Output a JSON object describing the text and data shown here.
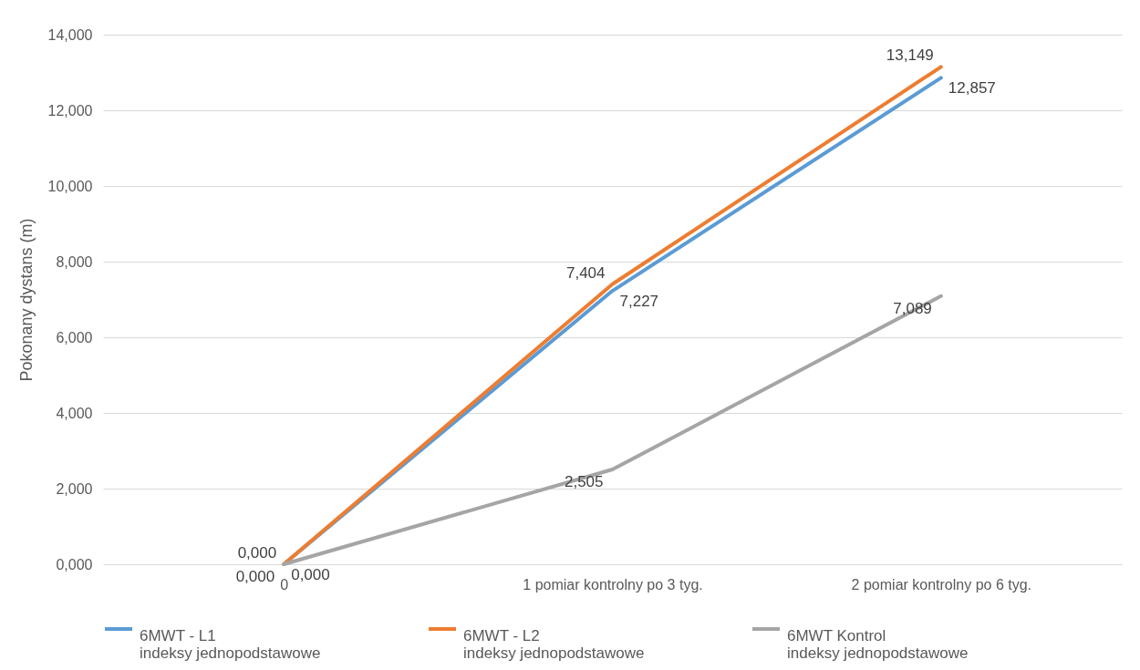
{
  "chart_data": {
    "type": "line",
    "ylabel": "Pokonany dystans (m)",
    "categories": [
      "0",
      "1 pomiar kontrolny po 3 tyg.",
      "2 pomiar kontrolny po 6 tyg."
    ],
    "series": [
      {
        "name": "6MWT - L1\nindeksy jednopodstawowe",
        "color": "#5b9bd5",
        "values": [
          0,
          7.227,
          12.857
        ],
        "value_labels": [
          "0,000",
          "7,227",
          "12,857"
        ]
      },
      {
        "name": "6MWT - L2\nindeksy jednopodstawowe",
        "color": "#ed7d31",
        "values": [
          0,
          7.404,
          13.149
        ],
        "value_labels": [
          "0,000",
          "7,404",
          "13,149"
        ]
      },
      {
        "name": "6MWT Kontrol\nindeksy jednopodstawowe",
        "color": "#a5a5a5",
        "values": [
          0,
          2.505,
          7.089
        ],
        "value_labels": [
          "0,000",
          "2,505",
          "7,089"
        ]
      }
    ],
    "ylim": [
      0,
      14
    ],
    "yticks": [
      {
        "value": 0,
        "label": "0,000"
      },
      {
        "value": 2,
        "label": "2,000"
      },
      {
        "value": 4,
        "label": "4,000"
      },
      {
        "value": 6,
        "label": "6,000"
      },
      {
        "value": 8,
        "label": "8,000"
      },
      {
        "value": 10,
        "label": "10,000"
      },
      {
        "value": 12,
        "label": "12,000"
      },
      {
        "value": 14,
        "label": "14,000"
      }
    ],
    "grid": "y",
    "legend": "bottom",
    "marker": "none",
    "line_style": "solid"
  }
}
